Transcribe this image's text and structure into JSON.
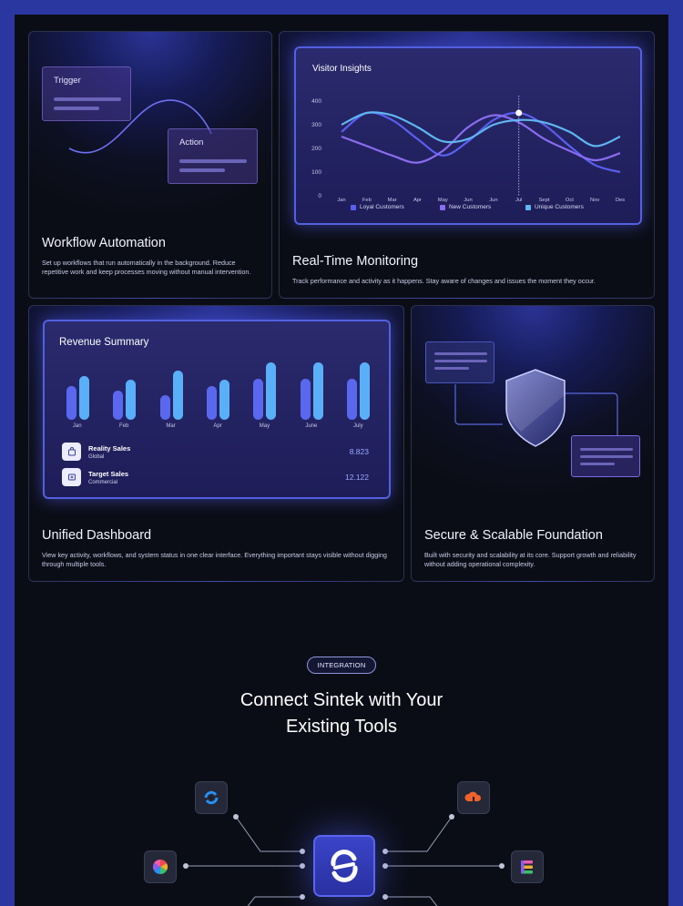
{
  "cards": {
    "workflow": {
      "title": "Workflow Automation",
      "description": "Set up workflows that run automatically in the background. Reduce repetitive work and keep processes moving without manual intervention.",
      "trigger_label": "Trigger",
      "action_label": "Action"
    },
    "monitoring": {
      "title": "Real-Time Monitoring",
      "description": "Track performance and activity as it happens. Stay aware of changes and issues the moment they occur."
    },
    "dashboard": {
      "title": "Unified Dashboard",
      "description": "View key activity, workflows, and system status in one clear interface. Everything important stays visible without digging through multiple tools."
    },
    "secure": {
      "title": "Secure & Scalable Foundation",
      "description": "Built with security and scalability at its core. Support growth and reliability without adding operational complexity."
    }
  },
  "visitor_chart": {
    "title": "Visitor Insights",
    "y_ticks": [
      "400",
      "300",
      "200",
      "100",
      "0"
    ],
    "x_ticks": [
      "Jan",
      "Feb",
      "Mar",
      "Apr",
      "May",
      "Jun",
      "Jun",
      "Jul",
      "Sept",
      "Oct",
      "Nov",
      "Des"
    ],
    "legend": [
      "Loyal Customers",
      "New Customers",
      "Unique Customers"
    ],
    "colors": [
      "#5b5ff0",
      "#8a6cf0",
      "#5fb6f0"
    ]
  },
  "revenue": {
    "title": "Revenue Summary",
    "months": [
      "Jan",
      "Feb",
      "Mar",
      "Apr",
      "May",
      "June",
      "July"
    ],
    "reality_sales": {
      "name": "Reality Sales",
      "sub": "Global",
      "value": "8.823"
    },
    "target_sales": {
      "name": "Target Sales",
      "sub": "Commercial",
      "value": "12.122"
    }
  },
  "integration": {
    "badge": "INTEGRATION",
    "headline_line1": "Connect Sintek with Your",
    "headline_line2": "Existing Tools"
  },
  "chart_data": [
    {
      "type": "line",
      "title": "Visitor Insights",
      "x": [
        "Jan",
        "Feb",
        "Mar",
        "Apr",
        "May",
        "Jun",
        "Jun",
        "Jul",
        "Sept",
        "Oct",
        "Nov",
        "Des"
      ],
      "ylim": [
        0,
        400
      ],
      "series": [
        {
          "name": "Loyal Customers",
          "values": [
            270,
            350,
            320,
            240,
            170,
            230,
            320,
            350,
            300,
            210,
            130,
            100
          ]
        },
        {
          "name": "New Customers",
          "values": [
            250,
            210,
            170,
            140,
            190,
            290,
            340,
            310,
            240,
            190,
            150,
            180
          ]
        },
        {
          "name": "Unique Customers",
          "values": [
            300,
            350,
            340,
            290,
            230,
            240,
            300,
            320,
            310,
            270,
            210,
            250
          ]
        }
      ]
    },
    {
      "type": "bar",
      "title": "Revenue Summary",
      "categories": [
        "Jan",
        "Feb",
        "Mar",
        "Apr",
        "May",
        "June",
        "July"
      ],
      "series": [
        {
          "name": "Reality Sales",
          "values": [
            42,
            37,
            31,
            42,
            52,
            52,
            52
          ]
        },
        {
          "name": "Target Sales",
          "values": [
            55,
            50,
            62,
            50,
            72,
            72,
            72
          ]
        }
      ],
      "ylim": [
        0,
        80
      ]
    }
  ]
}
